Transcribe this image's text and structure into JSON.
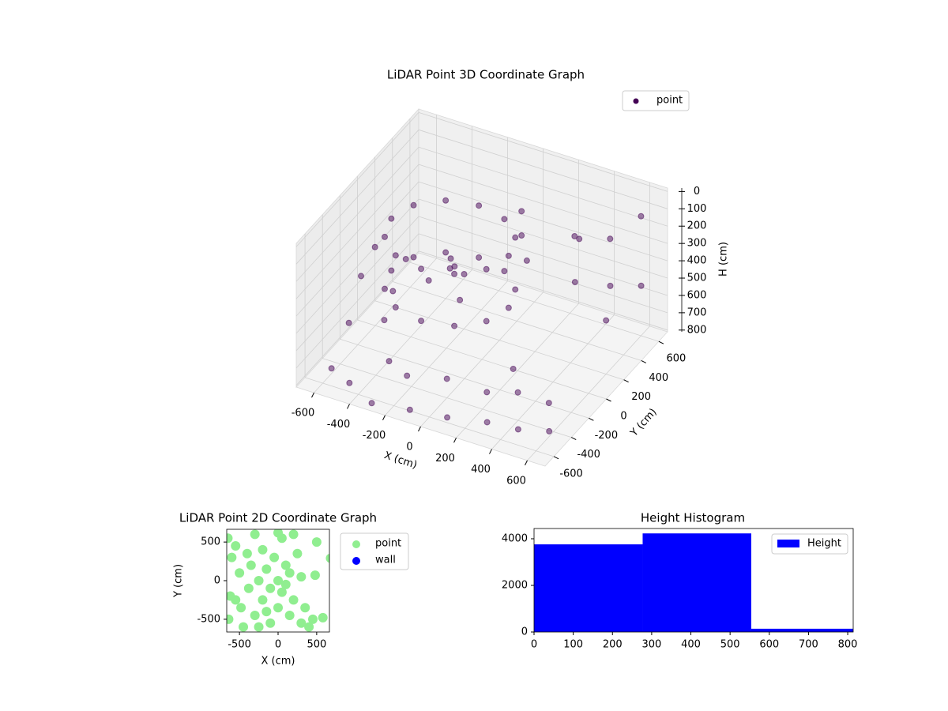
{
  "chart_data": [
    {
      "type": "scatter3d",
      "title": "LiDAR Point 3D Coordinate Graph",
      "xlabel": "X (cm)",
      "ylabel": "Y (cm)",
      "zlabel": "H (cm)",
      "xlim": [
        -700,
        700
      ],
      "ylim": [
        -700,
        700
      ],
      "zlim": [
        810,
        -20
      ],
      "xticks": [
        -600,
        -400,
        -200,
        0,
        200,
        400,
        600
      ],
      "yticks": [
        -600,
        -400,
        -200,
        0,
        200,
        400,
        600
      ],
      "zticks": [
        0,
        100,
        200,
        300,
        400,
        500,
        600,
        700,
        800
      ],
      "grid": true,
      "legend": "upper right",
      "series": [
        {
          "name": "point",
          "color": "#440154",
          "x": [
            180,
            136,
            15,
            -150,
            -315,
            -436,
            -480,
            -436,
            -315,
            -150,
            15,
            136,
            180,
            136,
            15,
            -150,
            -315,
            -436,
            -480,
            -436,
            -315,
            -150,
            15,
            136,
            -150,
            -100,
            -250,
            -50,
            -200,
            100,
            100,
            120,
            -600,
            -450,
            -300,
            -100,
            100,
            300,
            450,
            600,
            -650,
            -550,
            -600,
            -400,
            -200,
            0,
            200,
            350,
            -350,
            500,
            250,
            -500,
            400,
            500,
            600,
            450,
            550,
            650,
            300,
            600,
            -700,
            -680
          ],
          "y": [
            -60,
            105,
            226,
            270,
            226,
            105,
            -60,
            -225,
            -346,
            -390,
            -346,
            -225,
            -60,
            105,
            226,
            270,
            226,
            105,
            -60,
            -225,
            -346,
            -390,
            -346,
            -225,
            -60,
            0,
            -100,
            -150,
            50,
            250,
            250,
            270,
            -500,
            -600,
            -650,
            -620,
            -600,
            -550,
            -500,
            -450,
            -200,
            100,
            350,
            500,
            -450,
            -400,
            -350,
            -300,
            -350,
            -250,
            -150,
            -100,
            300,
            450,
            600,
            150,
            350,
            500,
            450,
            200,
            200,
            0
          ],
          "z": [
            120,
            120,
            120,
            120,
            120,
            120,
            120,
            120,
            120,
            120,
            120,
            120,
            420,
            420,
            420,
            420,
            420,
            420,
            420,
            420,
            420,
            420,
            420,
            420,
            300,
            350,
            380,
            400,
            320,
            60,
            200,
            350,
            780,
            760,
            800,
            790,
            780,
            770,
            790,
            780,
            700,
            650,
            620,
            680,
            720,
            700,
            740,
            720,
            740,
            760,
            700,
            690,
            150,
            200,
            120,
            300,
            400,
            450,
            250,
            500,
            500,
            550
          ]
        }
      ]
    },
    {
      "type": "scatter",
      "title": "LiDAR Point 2D Coordinate Graph",
      "xlabel": "X (cm)",
      "ylabel": "Y (cm)",
      "xlim": [
        -665,
        665
      ],
      "ylim": [
        -665,
        665
      ],
      "xticks": [
        -500,
        0,
        500
      ],
      "yticks": [
        -500,
        0,
        500
      ],
      "legend": "outside right",
      "series": [
        {
          "name": "point",
          "color": "#90ee90",
          "x": [
            -650,
            -600,
            -620,
            -640,
            -550,
            -500,
            -480,
            -450,
            -400,
            -380,
            -350,
            -300,
            -300,
            -250,
            -200,
            -200,
            -150,
            -100,
            -100,
            -50,
            0,
            0,
            50,
            50,
            100,
            150,
            150,
            200,
            200,
            250,
            300,
            350,
            400,
            450,
            500,
            480,
            580,
            -550,
            -150,
            100,
            300,
            -250,
            0,
            680
          ],
          "y": [
            550,
            300,
            -200,
            -500,
            450,
            100,
            -350,
            -600,
            350,
            -100,
            200,
            -450,
            600,
            0,
            -250,
            400,
            150,
            -550,
            -100,
            300,
            0,
            -350,
            550,
            -150,
            200,
            -450,
            100,
            600,
            -250,
            350,
            -550,
            -350,
            -600,
            -500,
            500,
            70,
            -480,
            -250,
            -400,
            -50,
            50,
            -600,
            620,
            290
          ]
        },
        {
          "name": "wall",
          "color": "#0000ff",
          "x": [],
          "y": []
        }
      ]
    },
    {
      "type": "histogram",
      "title": "Height Histogram",
      "bins": [
        0,
        277,
        554,
        814
      ],
      "xlim": [
        0,
        814
      ],
      "ylim": [
        0,
        4440
      ],
      "xticks": [
        0,
        100,
        200,
        300,
        400,
        500,
        600,
        700,
        800
      ],
      "yticks": [
        0,
        2000,
        4000
      ],
      "legend": "upper right",
      "series": [
        {
          "name": "Height",
          "color": "#0000ff",
          "values": [
            3760,
            4230,
            140
          ]
        }
      ]
    }
  ]
}
